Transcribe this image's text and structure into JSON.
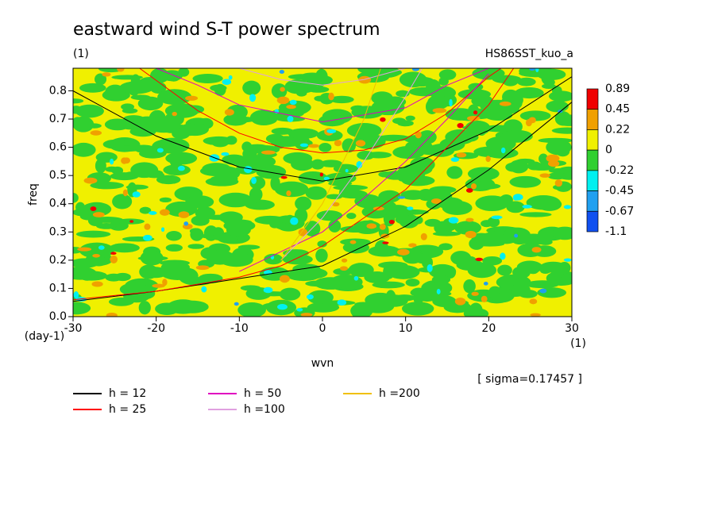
{
  "chart_data": {
    "type": "contour",
    "title": "eastward wind S-T power spectrum",
    "subtitle": "(1)",
    "label": "HS86SST_kuo_a",
    "xlabel": "wvn",
    "ylabel": "freq",
    "x_unit": "(1)",
    "y_unit": "(day-1)",
    "note": "[ sigma=0.17457 ]",
    "xlim": [
      -30,
      30
    ],
    "ylim": [
      0,
      0.88
    ],
    "xticks": [
      -30,
      -20,
      -10,
      0,
      10,
      20,
      30
    ],
    "yticks": [
      {
        "value": 0,
        "label": "0.0"
      },
      0.1,
      0.2,
      0.3,
      0.4,
      0.5,
      0.6,
      0.7,
      0.8
    ],
    "levels": [
      0.89,
      0.45,
      0.22,
      0,
      -0.22,
      -0.45,
      -0.67,
      -1.1
    ],
    "level_colors": [
      "#f00000",
      "#f0a000",
      "#f0f000",
      "#30d030",
      "#00f0f0",
      "#20a0f0",
      "#1050f0"
    ],
    "series": [
      {
        "name": "h = 12",
        "color": "#000000",
        "x": [
          -30,
          -20,
          -10,
          0,
          10,
          20,
          30,
          null,
          -30,
          -20,
          -10,
          0,
          10,
          20,
          30
        ],
        "values": [
          0.8,
          0.64,
          0.53,
          0.48,
          0.53,
          0.66,
          0.85,
          null,
          0.054,
          0.09,
          0.135,
          0.18,
          0.32,
          0.52,
          0.76
        ]
      },
      {
        "name": "h = 25",
        "color": "#ff0000",
        "x": [
          -22,
          -15,
          -10,
          -5,
          0,
          5,
          10,
          15,
          20,
          21.5,
          null,
          -30,
          -20,
          -10,
          -5,
          0,
          5,
          10,
          15,
          20,
          23
        ],
        "values": [
          0.88,
          0.73,
          0.65,
          0.6,
          0.58,
          0.59,
          0.63,
          0.72,
          0.85,
          0.88,
          null,
          0.06,
          0.09,
          0.14,
          0.18,
          0.25,
          0.35,
          0.45,
          0.6,
          0.75,
          0.88
        ]
      },
      {
        "name": "h = 50",
        "color": "#e000c0",
        "x": [
          -20,
          -15,
          -10,
          0,
          10,
          15,
          20,
          null,
          -10,
          0,
          5,
          10,
          15,
          20
        ],
        "values": [
          0.88,
          0.82,
          0.75,
          0.69,
          0.74,
          0.82,
          0.88,
          null,
          0.16,
          0.3,
          0.42,
          0.55,
          0.7,
          0.86
        ]
      },
      {
        "name": "h =100",
        "color": "#e0a0e0",
        "x": [
          -10,
          -5,
          0,
          5,
          10,
          null,
          -5,
          0,
          5,
          10,
          12
        ],
        "values": [
          0.88,
          0.84,
          0.82,
          0.84,
          0.88,
          null,
          0.2,
          0.35,
          0.55,
          0.78,
          0.88
        ]
      },
      {
        "name": "h =200",
        "color": "#f0c000",
        "x": [
          -5,
          0,
          5,
          7
        ],
        "values": [
          0.2,
          0.4,
          0.7,
          0.88
        ]
      }
    ]
  }
}
